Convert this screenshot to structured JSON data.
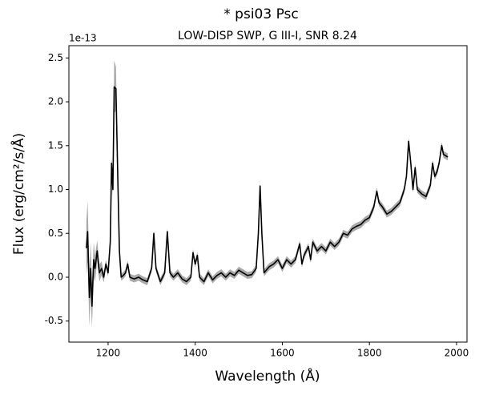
{
  "chart_data": {
    "type": "line",
    "title": "* psi03 Psc",
    "subtitle": "LOW-DISP SWP, G III-I, SNR 8.24",
    "x_label": "Wavelength (Å)",
    "y_label": "Flux (erg/cm²/s/Å)",
    "y_offset_label": "1e-13",
    "xlim": [
      1110,
      2024
    ],
    "ylim": [
      -0.74,
      2.64
    ],
    "xticks": [
      1200,
      1400,
      1600,
      1800,
      2000
    ],
    "yticks": [
      -0.5,
      {
        "value": 0,
        "label": "0.0"
      },
      0.5,
      {
        "value": 1,
        "label": "1.0"
      },
      1.5,
      {
        "value": 2,
        "label": "2.0"
      },
      2.5
    ],
    "x": [
      1150,
      1153,
      1157,
      1160,
      1163,
      1167,
      1170,
      1175,
      1180,
      1185,
      1190,
      1195,
      1200,
      1205,
      1208,
      1211,
      1214,
      1218,
      1222,
      1226,
      1230,
      1235,
      1240,
      1245,
      1250,
      1260,
      1270,
      1280,
      1290,
      1300,
      1305,
      1310,
      1320,
      1330,
      1336,
      1342,
      1350,
      1360,
      1370,
      1380,
      1390,
      1395,
      1400,
      1405,
      1410,
      1420,
      1430,
      1440,
      1450,
      1460,
      1470,
      1480,
      1490,
      1500,
      1510,
      1520,
      1530,
      1540,
      1545,
      1549,
      1553,
      1558,
      1570,
      1580,
      1590,
      1600,
      1610,
      1620,
      1630,
      1640,
      1645,
      1650,
      1660,
      1665,
      1670,
      1680,
      1690,
      1700,
      1710,
      1720,
      1730,
      1740,
      1750,
      1760,
      1770,
      1780,
      1790,
      1800,
      1810,
      1817,
      1822,
      1830,
      1840,
      1850,
      1860,
      1870,
      1880,
      1885,
      1890,
      1895,
      1900,
      1905,
      1910,
      1920,
      1930,
      1940,
      1945,
      1950,
      1955,
      1960,
      1966,
      1970,
      1980
    ],
    "series": [
      {
        "color": "#000000",
        "band_color": "#aaaaaa",
        "values": [
          0.33,
          0.52,
          -0.23,
          0.1,
          -0.33,
          0.2,
          0.1,
          0.3,
          0.05,
          0.1,
          0.0,
          0.15,
          0.05,
          0.4,
          1.3,
          1.0,
          2.17,
          2.15,
          1.2,
          0.3,
          0.0,
          0.02,
          0.05,
          0.15,
          0.0,
          -0.02,
          0.0,
          -0.03,
          -0.05,
          0.1,
          0.5,
          0.1,
          -0.05,
          0.05,
          0.52,
          0.05,
          0.0,
          0.05,
          -0.02,
          -0.05,
          0.0,
          0.28,
          0.15,
          0.25,
          0.0,
          -0.05,
          0.05,
          -0.03,
          0.02,
          0.05,
          0.0,
          0.05,
          0.02,
          0.08,
          0.05,
          0.02,
          0.03,
          0.1,
          0.5,
          1.04,
          0.5,
          0.05,
          0.12,
          0.15,
          0.2,
          0.1,
          0.2,
          0.15,
          0.2,
          0.38,
          0.15,
          0.25,
          0.35,
          0.2,
          0.4,
          0.3,
          0.35,
          0.3,
          0.4,
          0.35,
          0.4,
          0.5,
          0.48,
          0.55,
          0.58,
          0.6,
          0.65,
          0.68,
          0.8,
          0.98,
          0.85,
          0.8,
          0.72,
          0.75,
          0.8,
          0.85,
          1.0,
          1.15,
          1.55,
          1.3,
          1.0,
          1.25,
          1.0,
          0.95,
          0.92,
          1.05,
          1.3,
          1.15,
          1.2,
          1.3,
          1.5,
          1.4,
          1.37
        ],
        "errors": [
          0.3,
          0.35,
          0.33,
          0.3,
          0.25,
          0.2,
          0.15,
          0.12,
          0.1,
          0.08,
          0.06,
          0.05,
          0.04,
          0.05,
          0.08,
          0.08,
          0.3,
          0.25,
          0.1,
          0.05,
          0.04,
          0.04,
          0.04,
          0.04,
          0.04,
          0.04,
          0.04,
          0.04,
          0.04,
          0.04,
          0.04,
          0.04,
          0.04,
          0.04,
          0.04,
          0.04,
          0.04,
          0.04,
          0.04,
          0.04,
          0.04,
          0.04,
          0.04,
          0.04,
          0.04,
          0.04,
          0.04,
          0.04,
          0.04,
          0.04,
          0.04,
          0.04,
          0.04,
          0.04,
          0.04,
          0.04,
          0.04,
          0.04,
          0.04,
          0.04,
          0.04,
          0.04,
          0.04,
          0.04,
          0.04,
          0.04,
          0.04,
          0.04,
          0.04,
          0.04,
          0.04,
          0.04,
          0.04,
          0.04,
          0.04,
          0.04,
          0.04,
          0.04,
          0.04,
          0.04,
          0.04,
          0.04,
          0.04,
          0.04,
          0.04,
          0.04,
          0.04,
          0.04,
          0.04,
          0.04,
          0.04,
          0.04,
          0.04,
          0.04,
          0.04,
          0.04,
          0.04,
          0.04,
          0.04,
          0.04,
          0.04,
          0.04,
          0.04,
          0.04,
          0.04,
          0.04,
          0.04,
          0.04,
          0.04,
          0.04,
          0.04,
          0.04,
          0.04
        ]
      }
    ]
  }
}
